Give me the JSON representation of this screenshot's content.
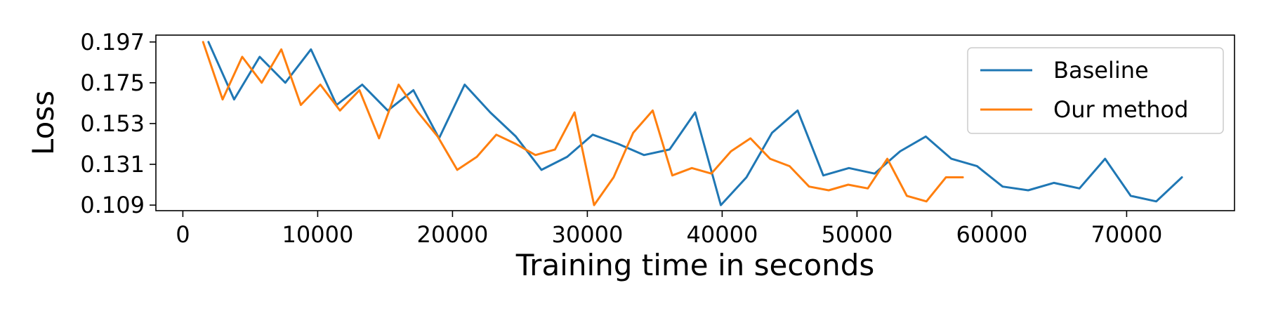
{
  "chart_data": {
    "type": "line",
    "xlabel": "Training time in seconds",
    "ylabel": "Loss",
    "xlim": [
      -2000,
      78000
    ],
    "ylim": [
      0.106,
      0.2007
    ],
    "xticks": [
      0,
      10000,
      20000,
      30000,
      40000,
      50000,
      60000,
      70000
    ],
    "yticks": [
      0.109,
      0.131,
      0.153,
      0.175,
      0.197
    ],
    "ytick_labels": [
      "0.109",
      "0.131",
      "0.153",
      "0.175",
      "0.197"
    ],
    "grid": false,
    "legend_position": "top-right",
    "series": [
      {
        "name": "Baseline",
        "color": "#1f77b4",
        "x": [
          1900,
          3800,
          5700,
          7600,
          9500,
          11400,
          13300,
          15200,
          17100,
          19000,
          20900,
          22800,
          24700,
          26600,
          28500,
          30400,
          32300,
          34200,
          36100,
          38000,
          39900,
          41800,
          43700,
          45600,
          47500,
          49400,
          51300,
          53200,
          55100,
          57000,
          58900,
          60800,
          62700,
          64600,
          66500,
          68400,
          70300,
          72200,
          74100
        ],
        "values": [
          0.197,
          0.166,
          0.189,
          0.175,
          0.193,
          0.163,
          0.174,
          0.16,
          0.171,
          0.145,
          0.174,
          0.159,
          0.146,
          0.128,
          0.135,
          0.147,
          0.142,
          0.136,
          0.139,
          0.159,
          0.109,
          0.124,
          0.148,
          0.16,
          0.125,
          0.129,
          0.126,
          0.138,
          0.146,
          0.134,
          0.13,
          0.119,
          0.117,
          0.121,
          0.118,
          0.134,
          0.114,
          0.111,
          0.124
        ]
      },
      {
        "name": "Our method",
        "color": "#ff7f0e",
        "x": [
          1500,
          2950,
          4400,
          5850,
          7300,
          8750,
          10200,
          11650,
          13100,
          14550,
          16000,
          17450,
          18900,
          20350,
          21800,
          23250,
          24700,
          26150,
          27600,
          29050,
          30500,
          31950,
          33400,
          34850,
          36300,
          37750,
          39200,
          40650,
          42100,
          43550,
          45000,
          46450,
          47900,
          49350,
          50800,
          52250,
          53700,
          55150,
          56600,
          57850
        ],
        "values": [
          0.197,
          0.166,
          0.189,
          0.175,
          0.193,
          0.163,
          0.174,
          0.16,
          0.171,
          0.145,
          0.174,
          0.159,
          0.146,
          0.128,
          0.135,
          0.147,
          0.142,
          0.136,
          0.139,
          0.159,
          0.109,
          0.124,
          0.148,
          0.16,
          0.125,
          0.129,
          0.126,
          0.138,
          0.145,
          0.134,
          0.13,
          0.119,
          0.117,
          0.12,
          0.118,
          0.134,
          0.114,
          0.111,
          0.124,
          0.124
        ]
      }
    ]
  }
}
